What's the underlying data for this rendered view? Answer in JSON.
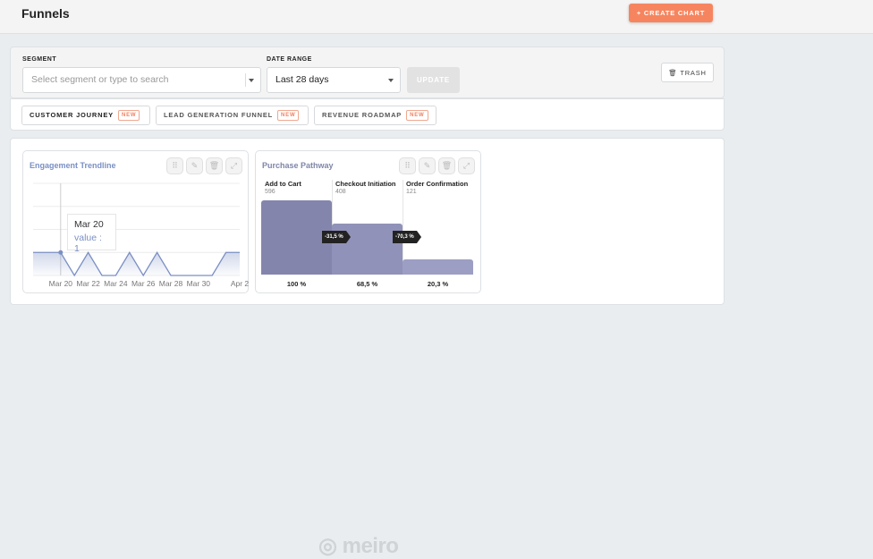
{
  "header": {
    "title": "Funnels",
    "create_label": "+ CREATE CHART"
  },
  "filters": {
    "segment_label": "SEGMENT",
    "segment_placeholder": "Select segment or type to search",
    "date_label": "DATE RANGE",
    "date_value": "Last 28 days",
    "update_label": "UPDATE",
    "trash_label": "TRASH"
  },
  "tabs": [
    {
      "label": "CUSTOMER JOURNEY",
      "badge": "NEW",
      "active": true
    },
    {
      "label": "LEAD GENERATION FUNNEL",
      "badge": "NEW"
    },
    {
      "label": "REVENUE ROADMAP",
      "badge": "NEW"
    }
  ],
  "charts": [
    {
      "title": "Engagement Trendline",
      "tooltip": {
        "date": "Mar 20",
        "value": "value : 1"
      },
      "chart_data": {
        "type": "area",
        "x": [
          "Mar 18",
          "Mar 19",
          "Mar 20",
          "Mar 21",
          "Mar 22",
          "Mar 23",
          "Mar 24",
          "Mar 25",
          "Mar 26",
          "Mar 27",
          "Mar 28",
          "Mar 29",
          "Mar 30",
          "Mar 31",
          "Apr 1",
          "Apr 2"
        ],
        "values": [
          1,
          1,
          1,
          0,
          1,
          0,
          0,
          1,
          0,
          1,
          0,
          0,
          0,
          0,
          1,
          1
        ],
        "x_ticks": [
          "Mar 20",
          "Mar 22",
          "Mar 24",
          "Mar 26",
          "Mar 28",
          "Mar 30",
          "Apr 2"
        ],
        "ylim": [
          0,
          4
        ],
        "grid": true,
        "color": "#7a8fc4"
      }
    },
    {
      "title": "Purchase Pathway",
      "chart_data": {
        "type": "bar",
        "categories": [
          "Add to Cart",
          "Checkout Initiation",
          "Order Confirmation"
        ],
        "values": [
          596,
          408,
          121
        ],
        "percent_labels": [
          "100 %",
          "68,5 %",
          "20,3 %"
        ],
        "dropoff_labels": [
          "-31,5 %",
          "-70,3 %"
        ],
        "colors": [
          "#8485ad",
          "#9192b9",
          "#9d9ec4"
        ]
      }
    }
  ],
  "footer": {
    "logo": "meiro"
  }
}
